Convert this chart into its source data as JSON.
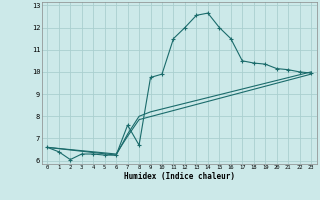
{
  "xlabel": "Humidex (Indice chaleur)",
  "bg_color": "#cce9e9",
  "grid_color": "#aacfcf",
  "line_color": "#1a6b6b",
  "xlim": [
    -0.5,
    23.5
  ],
  "ylim": [
    5.85,
    13.15
  ],
  "series1_x": [
    0,
    1,
    2,
    3,
    4,
    5,
    6,
    7,
    8,
    9,
    10,
    11,
    12,
    13,
    14,
    15,
    16,
    17,
    18,
    19,
    20,
    21,
    22,
    23
  ],
  "series1_y": [
    6.6,
    6.4,
    6.05,
    6.3,
    6.3,
    6.25,
    6.25,
    7.6,
    6.7,
    9.75,
    9.9,
    11.5,
    12.0,
    12.55,
    12.65,
    12.0,
    11.5,
    10.5,
    10.4,
    10.35,
    10.15,
    10.1,
    10.0,
    9.95
  ],
  "series2_x": [
    0,
    6,
    7,
    8,
    9,
    23
  ],
  "series2_y": [
    6.6,
    6.25,
    7.2,
    8.0,
    8.2,
    10.0
  ],
  "series3_x": [
    0,
    6,
    7,
    8,
    23
  ],
  "series3_y": [
    6.6,
    6.3,
    7.1,
    7.85,
    9.9
  ]
}
